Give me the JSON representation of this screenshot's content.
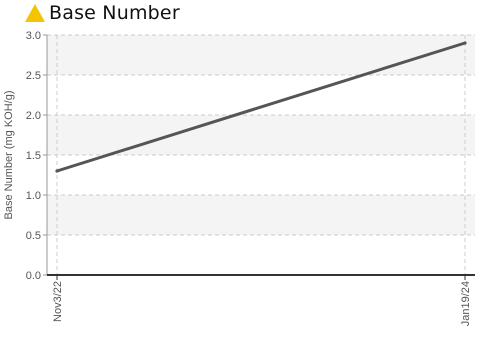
{
  "header": {
    "title": "Base Number",
    "icon": "warning-triangle-icon",
    "icon_color": "#f5c400"
  },
  "chart_data": {
    "type": "line",
    "title": "Base Number",
    "xlabel": "",
    "ylabel": "Base Number (mg KOH/g)",
    "ylim": [
      0,
      3.0
    ],
    "yticks": [
      0.0,
      0.5,
      1.0,
      1.5,
      2.0,
      2.5,
      3.0
    ],
    "ytick_labels": [
      "0.0",
      "0.5",
      "1.0",
      "1.5",
      "2.0",
      "2.5",
      "3.0"
    ],
    "categories": [
      "Nov3/22",
      "Jan19/24"
    ],
    "series": [
      {
        "values": [
          1.3,
          2.9
        ],
        "color": "#555555"
      }
    ],
    "grid": true
  }
}
